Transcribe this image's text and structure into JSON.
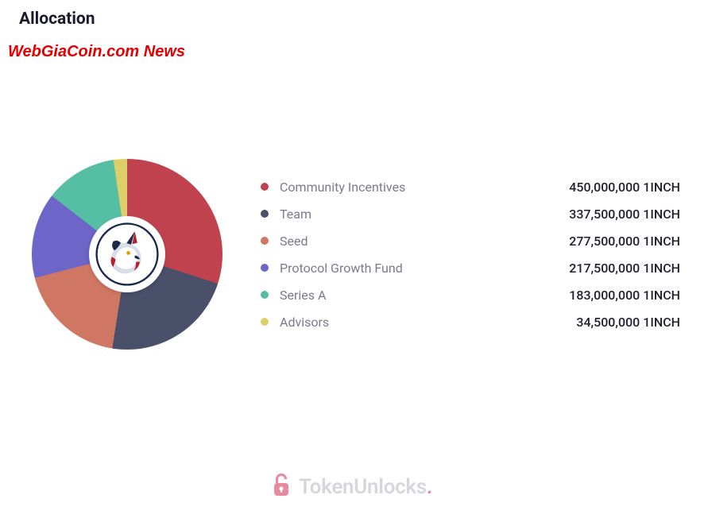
{
  "header": {
    "title": "Allocation"
  },
  "watermark": {
    "news_text": "WebGiaCoin.com News",
    "color": "#e30000"
  },
  "chart": {
    "type": "pie",
    "background_color": "#ffffff",
    "donut_inner_ratio": 0.4,
    "center_icon": "unicorn-logo",
    "slices": [
      {
        "label": "Community Incentives",
        "value": 450000000,
        "display_value": "450,000,000 1INCH",
        "color": "#c1424f"
      },
      {
        "label": "Team",
        "value": 337500000,
        "display_value": "337,500,000 1INCH",
        "color": "#4a4f6a"
      },
      {
        "label": "Seed",
        "value": 277500000,
        "display_value": "277,500,000 1INCH",
        "color": "#d07763"
      },
      {
        "label": "Protocol Growth Fund",
        "value": 217500000,
        "display_value": "217,500,000 1INCH",
        "color": "#6d65c7"
      },
      {
        "label": "Series A",
        "value": 183000000,
        "display_value": "183,000,000 1INCH",
        "color": "#56bfa3"
      },
      {
        "label": "Advisors",
        "value": 34500000,
        "display_value": "34,500,000 1INCH",
        "color": "#dccf6a"
      }
    ],
    "label_fontsize": 16,
    "label_color": "#7b7b8a",
    "value_color": "#1f1f2e"
  },
  "footer": {
    "brand_part1": "Token",
    "brand_part2": "Unlocks",
    "dot": ".",
    "brand_color": "#d6d6dd",
    "accent_color": "#e78aa0"
  }
}
